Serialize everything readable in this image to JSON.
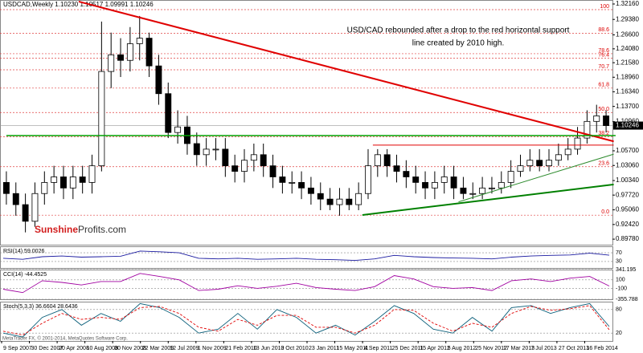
{
  "chart_data": {
    "type": "candlestick",
    "title": "USDCAD,Weekly  1.10230 1.10517 1.09991 1.10246",
    "annotation": [
      "USD/CAD rebounded after a drop to the red horizontal support",
      "line created by 2010 high."
    ],
    "brand": [
      "Sunshine",
      "Profits.com"
    ],
    "footer": "MetaTrader FX, © 2001-2014, MetaQuotes Software Corp.",
    "ylim": [
      0.8878,
      1.3288
    ],
    "yticks": [
      {
        "value": 1.3216,
        "label": "1.32160"
      },
      {
        "value": 1.2938,
        "label": "1.29380"
      },
      {
        "value": 1.266,
        "label": "1.26600"
      },
      {
        "value": 1.2408,
        "label": "1.24080"
      },
      {
        "value": 1.2158,
        "label": "1.21580"
      },
      {
        "value": 1.1896,
        "label": "1.18960"
      },
      {
        "value": 1.1634,
        "label": "1.16340"
      },
      {
        "value": 1.137,
        "label": "1.13700"
      },
      {
        "value": 1.1096,
        "label": "1.10960"
      },
      {
        "value": 1.057,
        "label": "1.05700"
      },
      {
        "value": 1.0306,
        "label": "1.03060"
      },
      {
        "value": 1.0034,
        "label": "1.00340"
      },
      {
        "value": 0.9772,
        "label": "0.97720"
      },
      {
        "value": 0.9506,
        "label": "0.95060"
      },
      {
        "value": 0.9242,
        "label": "0.92420"
      },
      {
        "value": 0.8978,
        "label": "0.89780"
      }
    ],
    "current_price": 1.10246,
    "x_labels": [
      "9 Sep 2007",
      "30 Dec 2007",
      "20 Apr 2008",
      "10 Aug 2008",
      "30 Nov 2008",
      "22 Mar 2009",
      "12 Jul 2009",
      "1 Nov 2009",
      "21 Feb 2010",
      "13 Jun 2010",
      "3 Oct 2010",
      "23 Jan 2011",
      "15 May 2011",
      "4 Sep 2011",
      "25 Dec 2011",
      "15 Apr 2012",
      "5 Aug 2012",
      "25 Nov 2012",
      "17 Mar 2013",
      "7 Jul 2013",
      "27 Oct 2013",
      "16 Feb 2014"
    ],
    "open": [
      1.0,
      0.98,
      0.96,
      0.93,
      0.98,
      1.0,
      1.01,
      0.99,
      1.01,
      1.0,
      1.03,
      1.2,
      1.23,
      1.22,
      1.25,
      1.26,
      1.21,
      1.16,
      1.09,
      1.1,
      1.07,
      1.05,
      1.06,
      1.06,
      1.03,
      1.02,
      1.04,
      1.05,
      1.03,
      1.01,
      1.0,
      1.0,
      0.99,
      0.98,
      0.97,
      0.96,
      0.97,
      0.96,
      0.98,
      1.03,
      1.05,
      1.03,
      1.02,
      1.01,
      1.0,
      0.99,
      1.0,
      1.01,
      0.99,
      0.98,
      0.98,
      0.99,
      0.99,
      1.0,
      1.02,
      1.03,
      1.04,
      1.03,
      1.04,
      1.05,
      1.06,
      1.08,
      1.11,
      1.12
    ],
    "high": [
      1.02,
      1.0,
      0.98,
      1.0,
      1.02,
      1.03,
      1.03,
      1.03,
      1.03,
      1.05,
      1.29,
      1.27,
      1.26,
      1.28,
      1.3,
      1.27,
      1.23,
      1.18,
      1.13,
      1.12,
      1.09,
      1.08,
      1.08,
      1.08,
      1.05,
      1.06,
      1.07,
      1.07,
      1.05,
      1.03,
      1.02,
      1.02,
      1.01,
      1.0,
      0.99,
      0.99,
      0.99,
      1.0,
      1.06,
      1.06,
      1.06,
      1.05,
      1.04,
      1.03,
      1.02,
      1.02,
      1.03,
      1.03,
      1.01,
      1.0,
      1.01,
      1.01,
      1.02,
      1.04,
      1.05,
      1.06,
      1.06,
      1.06,
      1.07,
      1.08,
      1.1,
      1.13,
      1.14,
      1.13
    ],
    "low": [
      0.96,
      0.94,
      0.91,
      0.92,
      0.96,
      0.98,
      0.97,
      0.97,
      0.98,
      0.98,
      1.02,
      1.17,
      1.19,
      1.2,
      1.22,
      1.19,
      1.14,
      1.08,
      1.07,
      1.05,
      1.03,
      1.03,
      1.04,
      1.01,
      1.0,
      1.0,
      1.02,
      1.01,
      0.99,
      0.98,
      0.98,
      0.97,
      0.96,
      0.95,
      0.95,
      0.94,
      0.95,
      0.95,
      0.97,
      1.01,
      1.01,
      1.0,
      0.99,
      0.98,
      0.97,
      0.97,
      0.98,
      0.97,
      0.97,
      0.97,
      0.97,
      0.98,
      0.98,
      0.99,
      1.01,
      1.02,
      1.02,
      1.02,
      1.03,
      1.04,
      1.05,
      1.07,
      1.09,
      1.09
    ],
    "close": [
      0.98,
      0.96,
      0.93,
      0.98,
      1.0,
      1.01,
      0.99,
      1.01,
      1.0,
      1.03,
      1.2,
      1.23,
      1.22,
      1.25,
      1.26,
      1.21,
      1.16,
      1.09,
      1.1,
      1.07,
      1.05,
      1.06,
      1.06,
      1.03,
      1.02,
      1.04,
      1.05,
      1.03,
      1.01,
      1.0,
      1.0,
      0.99,
      0.98,
      0.97,
      0.96,
      0.97,
      0.96,
      0.98,
      1.03,
      1.05,
      1.03,
      1.02,
      1.01,
      1.0,
      0.99,
      1.0,
      1.01,
      0.99,
      0.98,
      0.98,
      0.99,
      0.99,
      1.0,
      1.02,
      1.03,
      1.04,
      1.03,
      1.04,
      1.05,
      1.06,
      1.08,
      1.11,
      1.12,
      1.10246
    ],
    "fib_levels": [
      {
        "label": "100",
        "price": 1.3115
      },
      {
        "label": "88.6",
        "price": 1.269
      },
      {
        "label": "78.6",
        "price": 1.232
      },
      {
        "label": "76.4",
        "price": 1.224
      },
      {
        "label": "70.7",
        "price": 1.203
      },
      {
        "label": "61.8",
        "price": 1.17
      },
      {
        "label": "50.0",
        "price": 1.126
      },
      {
        "label": "38.2",
        "price": 1.0825
      },
      {
        "label": "23.6",
        "price": 1.0284
      },
      {
        "label": "0.0",
        "price": 0.941
      }
    ],
    "lines": [
      {
        "color": "#e00000",
        "width": 2,
        "from_index": 7.6,
        "from": 1.326,
        "to_index": 63.8,
        "to": 1.074
      },
      {
        "color": "#e00000",
        "width": 1,
        "from_index": 38.5,
        "from": 1.0672,
        "to_index": 63.8,
        "to": 1.0672
      },
      {
        "color": "#00a000",
        "width": 1.5,
        "from_index": 0,
        "from": 1.0845,
        "to_index": 64,
        "to": 1.0845
      },
      {
        "color": "#008000",
        "width": 2,
        "from_index": 37.4,
        "from": 0.9413,
        "to_index": 63.8,
        "to": 0.9963
      },
      {
        "color": "#2e8b2e",
        "width": 1,
        "from_index": 47.5,
        "from": 0.965,
        "to_index": 63.8,
        "to": 1.051
      }
    ],
    "indicators": [
      {
        "name": "RSI(14) 59.0026",
        "ylim": [
          0,
          100
        ],
        "yticks": [
          70,
          30
        ],
        "series": [
          {
            "color": "#1a1aa0",
            "values": [
              45,
              40,
              52,
              55,
              50,
              52,
              54,
              78,
              75,
              70,
              45,
              42,
              45,
              40,
              42,
              45,
              40,
              38,
              35,
              42,
              58,
              52,
              48,
              46,
              45,
              42,
              50,
              55,
              58,
              60,
              68,
              59.0026
            ]
          }
        ]
      },
      {
        "name": "CCI(14) -44.4525",
        "ylim": [
          -355.788,
          341.195
        ],
        "yticks": [
          341.195,
          100,
          -100,
          -355.788
        ],
        "series": [
          {
            "color": "#a000a0",
            "values": [
              -120,
              -200,
              80,
              40,
              -20,
              60,
              60,
              250,
              180,
              100,
              -150,
              -120,
              -40,
              -100,
              -50,
              20,
              -80,
              -120,
              -150,
              -60,
              200,
              120,
              -60,
              -100,
              -80,
              -150,
              80,
              120,
              60,
              140,
              180,
              -44.4525
            ]
          }
        ]
      },
      {
        "name": "Stoch(5,3,3) 36.6604 28.6436",
        "ylim": [
          0,
          100
        ],
        "yticks": [
          80,
          20
        ],
        "series": [
          {
            "color": "#0b5f7a",
            "values": [
              20,
              10,
              60,
              80,
              40,
              70,
              50,
              95,
              85,
              60,
              20,
              30,
              70,
              30,
              80,
              60,
              20,
              40,
              15,
              50,
              90,
              70,
              30,
              20,
              60,
              25,
              85,
              90,
              70,
              85,
              95,
              36.6604
            ]
          },
          {
            "color": "#e00000",
            "dash": true,
            "values": [
              25,
              15,
              45,
              70,
              55,
              60,
              55,
              85,
              88,
              70,
              35,
              25,
              55,
              40,
              65,
              65,
              35,
              35,
              20,
              40,
              80,
              78,
              45,
              25,
              45,
              35,
              70,
              88,
              78,
              82,
              90,
              28.6436
            ]
          }
        ]
      }
    ]
  }
}
